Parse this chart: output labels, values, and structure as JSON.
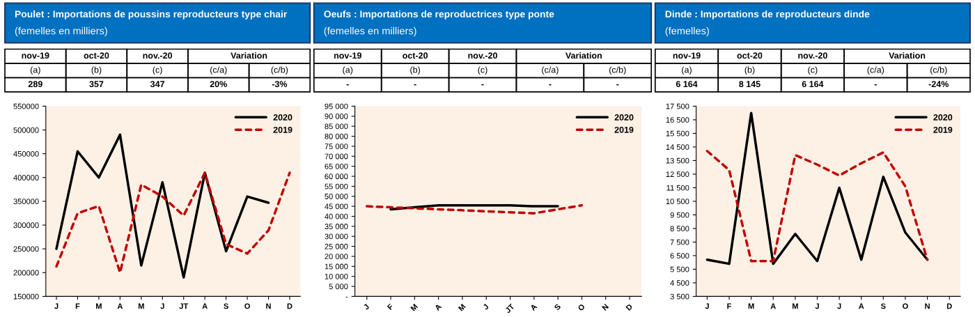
{
  "chart_data": [
    {
      "type": "line",
      "title": "Poulet : Importations de poussins reproducteurs type chair",
      "subtitle": "(femelles en milliers)",
      "annotations": [
        "nov-19",
        "oct-20",
        "nov.-20",
        "Variation",
        "(a)",
        "(b)",
        "(c)",
        "(c/a)",
        "(c/b)",
        "289",
        "357",
        "347",
        "20%",
        "-3%"
      ],
      "categories": [
        "J",
        "F",
        "M",
        "A",
        "M",
        "J",
        "JT",
        "A",
        "S",
        "O",
        "N",
        "D"
      ],
      "series": [
        {
          "name": "2020",
          "color": "#000000",
          "line_style": "solid",
          "values": [
            250000,
            455000,
            400000,
            490000,
            215000,
            390000,
            190000,
            410000,
            245000,
            360000,
            347000,
            null
          ]
        },
        {
          "name": "2019",
          "color": "#c00000",
          "line_style": "dashed",
          "values": [
            213000,
            325000,
            340000,
            200000,
            385000,
            360000,
            320000,
            410000,
            260000,
            240000,
            289000,
            410000
          ]
        }
      ],
      "ylim": [
        150000,
        550000
      ],
      "yticks": [
        150000,
        200000,
        250000,
        300000,
        350000,
        400000,
        450000,
        500000,
        550000
      ],
      "legend": "top right",
      "grid": false
    },
    {
      "type": "line",
      "title": "Oeufs : Importations de reproductrices type ponte",
      "subtitle": "(femelles en milliers)",
      "annotations": [
        "nov-19",
        "oct-20",
        "nov.-20",
        "Variation",
        "(a)",
        "(b)",
        "(c)",
        "(c/a)",
        "(c/b)",
        "-",
        "-",
        "-",
        "-",
        "-"
      ],
      "categories": [
        "J",
        "F",
        "M",
        "A",
        "M",
        "J",
        "JT",
        "A",
        "S",
        "O",
        "N",
        "D"
      ],
      "series": [
        {
          "name": "2020",
          "color": "#000000",
          "line_style": "solid",
          "values": [
            null,
            43500,
            44500,
            45500,
            45500,
            45500,
            45500,
            45000,
            45000,
            null,
            null,
            null
          ]
        },
        {
          "name": "2019",
          "color": "#c00000",
          "line_style": "dashed",
          "values": [
            45000,
            44500,
            44000,
            43500,
            43000,
            42500,
            42000,
            41500,
            43500,
            45500,
            null,
            null
          ]
        }
      ],
      "ylim": [
        0,
        95000
      ],
      "yticks": [
        {
          "value": 0,
          "label": "-"
        },
        {
          "value": 5000,
          "label": "5 000"
        },
        {
          "value": 10000,
          "label": "10 000"
        },
        {
          "value": 15000,
          "label": "15 000"
        },
        {
          "value": 20000,
          "label": "20 000"
        },
        {
          "value": 25000,
          "label": "25 000"
        },
        {
          "value": 30000,
          "label": "30 000"
        },
        {
          "value": 35000,
          "label": "35 000"
        },
        {
          "value": 40000,
          "label": "40 000"
        },
        {
          "value": 45000,
          "label": "45 000"
        },
        {
          "value": 50000,
          "label": "50 000"
        },
        {
          "value": 55000,
          "label": "55 000"
        },
        {
          "value": 60000,
          "label": "60 000"
        },
        {
          "value": 65000,
          "label": "65 000"
        },
        {
          "value": 70000,
          "label": "70 000"
        },
        {
          "value": 75000,
          "label": "75 000"
        },
        {
          "value": 80000,
          "label": "80 000"
        },
        {
          "value": 85000,
          "label": "85 000"
        },
        {
          "value": 90000,
          "label": "90 000"
        },
        {
          "value": 95000,
          "label": "95 000"
        }
      ],
      "legend": "top right",
      "grid": false
    },
    {
      "type": "line",
      "title": "Dinde : Importations de reproducteurs dinde",
      "subtitle": "(femelles)",
      "annotations": [
        "nov-19",
        "oct-20",
        "nov.-20",
        "Variation",
        "(a)",
        "(b)",
        "(c)",
        "(c/a)",
        "(c/b)",
        "6 164",
        "8 145",
        "6 164",
        "-",
        "-24%"
      ],
      "categories": [
        "J",
        "F",
        "M",
        "A",
        "M",
        "J",
        "J",
        "A",
        "S",
        "O",
        "N",
        "D"
      ],
      "series": [
        {
          "name": "2020",
          "color": "#000000",
          "line_style": "solid",
          "values": [
            6200,
            5900,
            17000,
            5900,
            8100,
            6100,
            11500,
            6200,
            12300,
            8200,
            6200,
            null
          ]
        },
        {
          "name": "2019",
          "color": "#c00000",
          "line_style": "dashed",
          "values": [
            14200,
            12800,
            6100,
            6100,
            13900,
            13200,
            12400,
            13300,
            14100,
            11600,
            6200,
            null
          ]
        }
      ],
      "ylim": [
        3500,
        17500
      ],
      "yticks": [
        {
          "value": 3500,
          "label": "3 500"
        },
        {
          "value": 4500,
          "label": "4 500"
        },
        {
          "value": 5500,
          "label": "5 500"
        },
        {
          "value": 6500,
          "label": "6 500"
        },
        {
          "value": 7500,
          "label": "7 500"
        },
        {
          "value": 8500,
          "label": "8 500"
        },
        {
          "value": 9500,
          "label": "9 500"
        },
        {
          "value": 10500,
          "label": "10 500"
        },
        {
          "value": 11500,
          "label": "11 500"
        },
        {
          "value": 12500,
          "label": "12 500"
        },
        {
          "value": 13500,
          "label": "13 500"
        },
        {
          "value": 14500,
          "label": "14 500"
        },
        {
          "value": 15500,
          "label": "15 500"
        },
        {
          "value": 16500,
          "label": "16 500"
        },
        {
          "value": 17500,
          "label": "17 500"
        }
      ],
      "legend": "top right",
      "grid": false
    }
  ]
}
